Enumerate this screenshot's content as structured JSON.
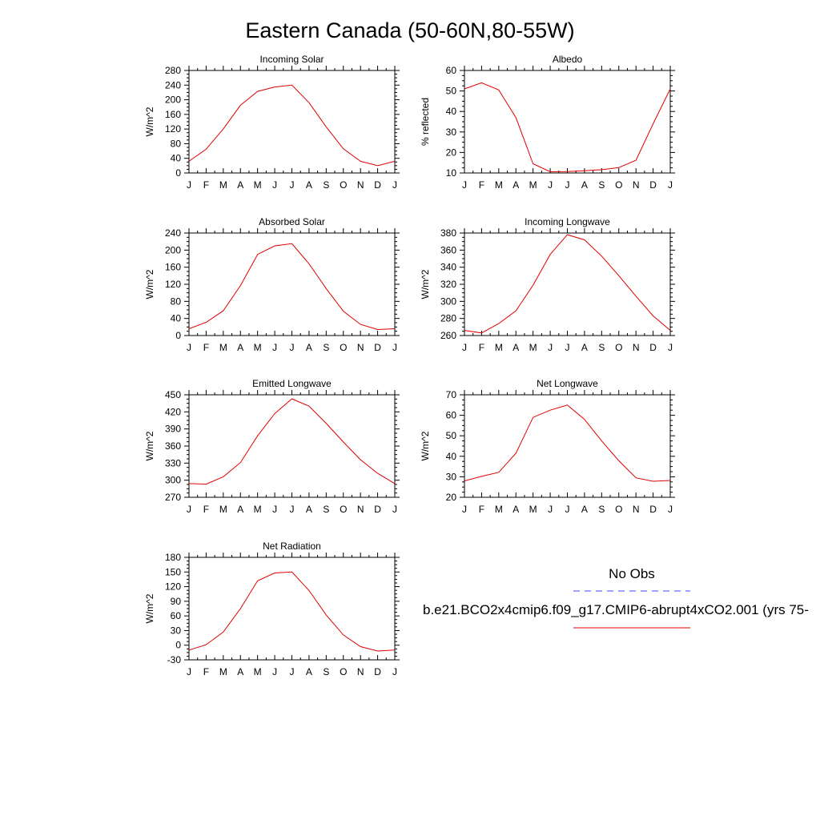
{
  "page_title": "Eastern Canada (50-60N,80-55W)",
  "x_labels": [
    "J",
    "F",
    "M",
    "A",
    "M",
    "J",
    "J",
    "A",
    "S",
    "O",
    "N",
    "D",
    "J"
  ],
  "line_color": "#e00000",
  "obs_color": "#4040ff",
  "legend": {
    "title": "No Obs",
    "model_label": "b.e21.BCO2x4cmip6.f09_g17.CMIP6-abrupt4xCO2.001 (yrs 75-"
  },
  "chart_data": [
    {
      "type": "line",
      "title": "Incoming Solar",
      "ylabel": "W/m^2",
      "ylim": [
        0,
        280
      ],
      "yticks": [
        0,
        40,
        80,
        120,
        160,
        200,
        240,
        280
      ],
      "categories": [
        "J",
        "F",
        "M",
        "A",
        "M",
        "J",
        "J",
        "A",
        "S",
        "O",
        "N",
        "D",
        "J"
      ],
      "values": [
        32,
        65,
        120,
        185,
        223,
        235,
        240,
        192,
        126,
        66,
        32,
        20,
        32
      ]
    },
    {
      "type": "line",
      "title": "Albedo",
      "ylabel": "% reflected",
      "ylim": [
        10,
        60
      ],
      "yticks": [
        10,
        20,
        30,
        40,
        50,
        60
      ],
      "categories": [
        "J",
        "F",
        "M",
        "A",
        "M",
        "J",
        "J",
        "A",
        "S",
        "O",
        "N",
        "D",
        "J"
      ],
      "values": [
        51,
        54,
        50.5,
        37,
        14.5,
        10.6,
        10.7,
        11.1,
        11.6,
        12.6,
        16.2,
        34,
        51
      ]
    },
    {
      "type": "line",
      "title": "Absorbed Solar",
      "ylabel": "W/m^2",
      "ylim": [
        0,
        240
      ],
      "yticks": [
        0,
        40,
        80,
        120,
        160,
        200,
        240
      ],
      "categories": [
        "J",
        "F",
        "M",
        "A",
        "M",
        "J",
        "J",
        "A",
        "S",
        "O",
        "N",
        "D",
        "J"
      ],
      "values": [
        16,
        31,
        58,
        117,
        190,
        210,
        215,
        168,
        110,
        57,
        26,
        14,
        16
      ]
    },
    {
      "type": "line",
      "title": "Incoming Longwave",
      "ylabel": "W/m^2",
      "ylim": [
        260,
        380
      ],
      "yticks": [
        260,
        280,
        300,
        320,
        340,
        360,
        380
      ],
      "categories": [
        "J",
        "F",
        "M",
        "A",
        "M",
        "J",
        "J",
        "A",
        "S",
        "O",
        "N",
        "D",
        "J"
      ],
      "values": [
        266,
        263,
        274,
        289,
        319,
        355,
        378,
        372,
        353,
        330,
        306,
        283,
        266
      ]
    },
    {
      "type": "line",
      "title": "Emitted Longwave",
      "ylabel": "W/m^2",
      "ylim": [
        270,
        450
      ],
      "yticks": [
        270,
        300,
        330,
        360,
        390,
        420,
        450
      ],
      "categories": [
        "J",
        "F",
        "M",
        "A",
        "M",
        "J",
        "J",
        "A",
        "S",
        "O",
        "N",
        "D",
        "J"
      ],
      "values": [
        294,
        293,
        306,
        331,
        378,
        417,
        443,
        430,
        400,
        367,
        336,
        312,
        294
      ]
    },
    {
      "type": "line",
      "title": "Net Longwave",
      "ylabel": "W/m^2",
      "ylim": [
        20,
        70
      ],
      "yticks": [
        20,
        30,
        40,
        50,
        60,
        70
      ],
      "categories": [
        "J",
        "F",
        "M",
        "A",
        "M",
        "J",
        "J",
        "A",
        "S",
        "O",
        "N",
        "D",
        "J"
      ],
      "values": [
        28,
        30.2,
        32.2,
        41.5,
        59,
        62.5,
        65,
        58,
        47.5,
        37.8,
        29.5,
        27.8,
        28.2
      ]
    },
    {
      "type": "line",
      "title": "Net Radiation",
      "ylabel": "W/m^2",
      "ylim": [
        -30,
        180
      ],
      "yticks": [
        -30,
        0,
        30,
        60,
        90,
        120,
        150,
        180
      ],
      "categories": [
        "J",
        "F",
        "M",
        "A",
        "M",
        "J",
        "J",
        "A",
        "S",
        "O",
        "N",
        "D",
        "J"
      ],
      "values": [
        -10,
        1,
        27,
        75,
        132,
        148,
        150,
        112,
        62,
        21,
        -3,
        -12,
        -10
      ]
    }
  ]
}
